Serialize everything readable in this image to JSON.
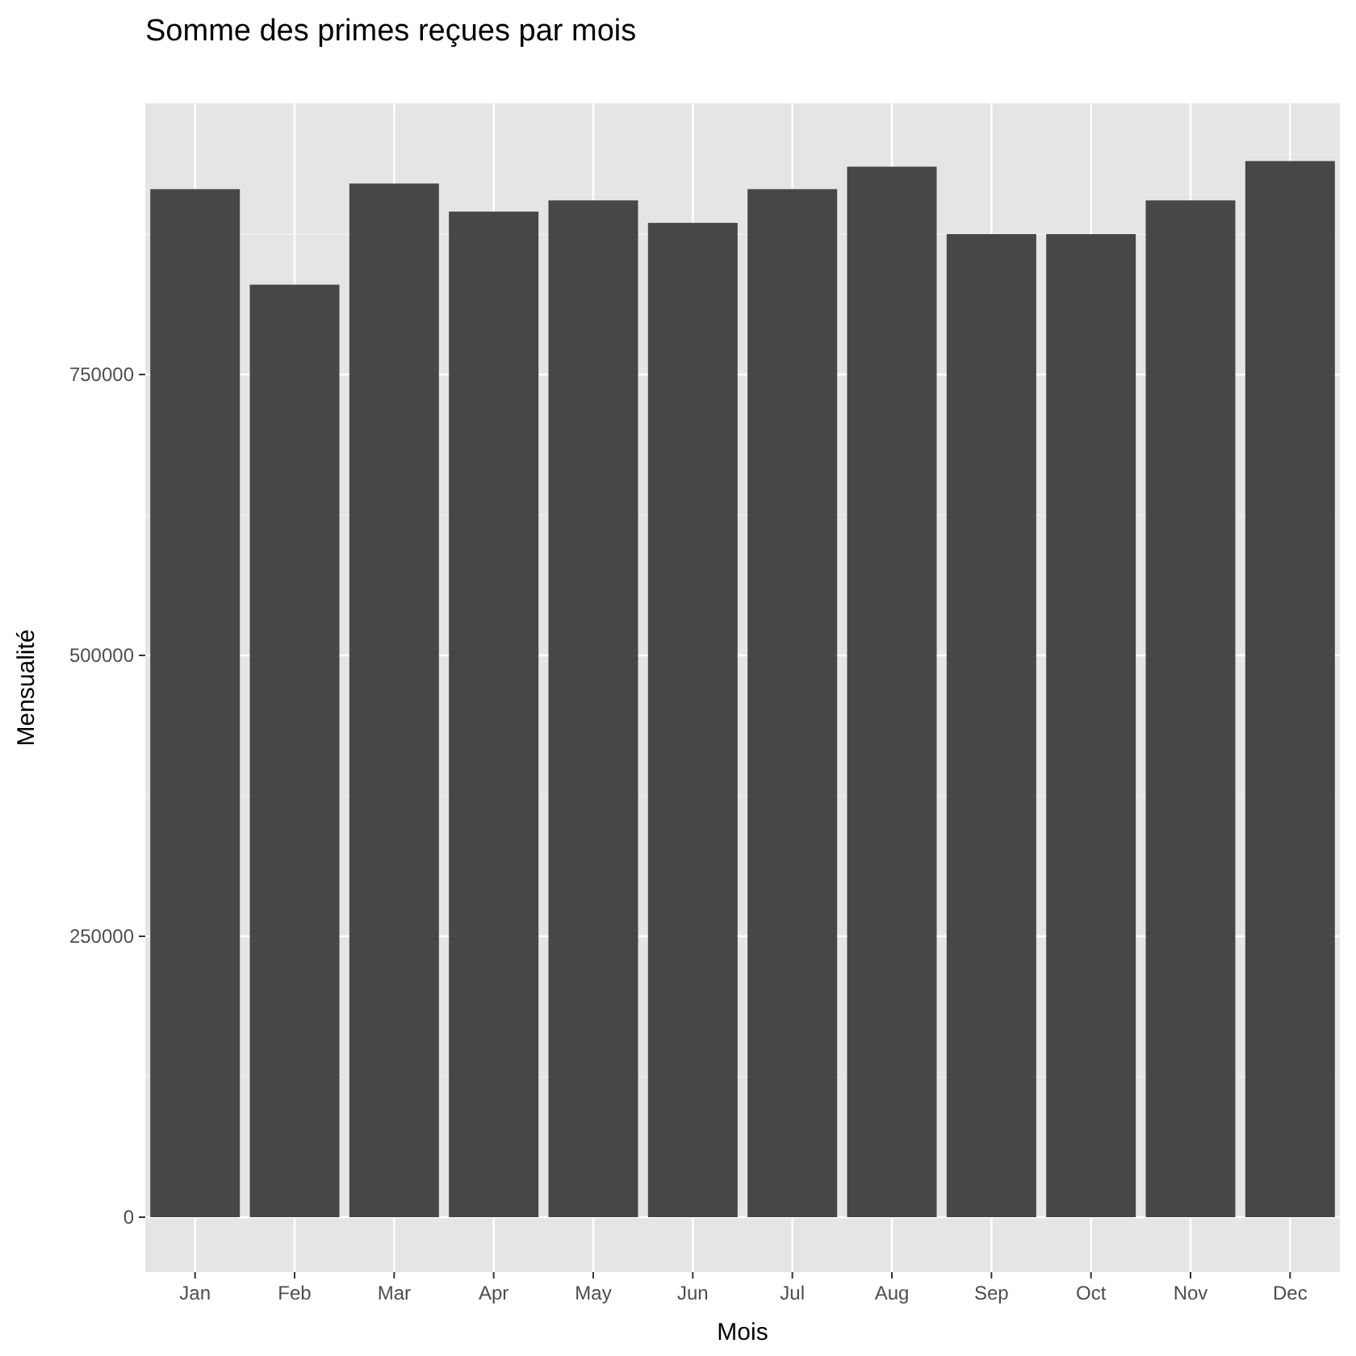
{
  "chart_data": {
    "type": "bar",
    "title": "Somme des primes reçues par mois",
    "xlabel": "Mois",
    "ylabel": "Mensualité",
    "categories": [
      "Jan",
      "Feb",
      "Mar",
      "Apr",
      "May",
      "Jun",
      "Jul",
      "Aug",
      "Sep",
      "Oct",
      "Nov",
      "Dec"
    ],
    "values": [
      915000,
      830000,
      920000,
      895000,
      905000,
      885000,
      915000,
      935000,
      875000,
      875000,
      905000,
      940000
    ],
    "color": "#474747",
    "ylim": [
      -48850,
      991400
    ],
    "yticks": [
      0,
      250000,
      500000,
      750000
    ],
    "grid": true
  }
}
